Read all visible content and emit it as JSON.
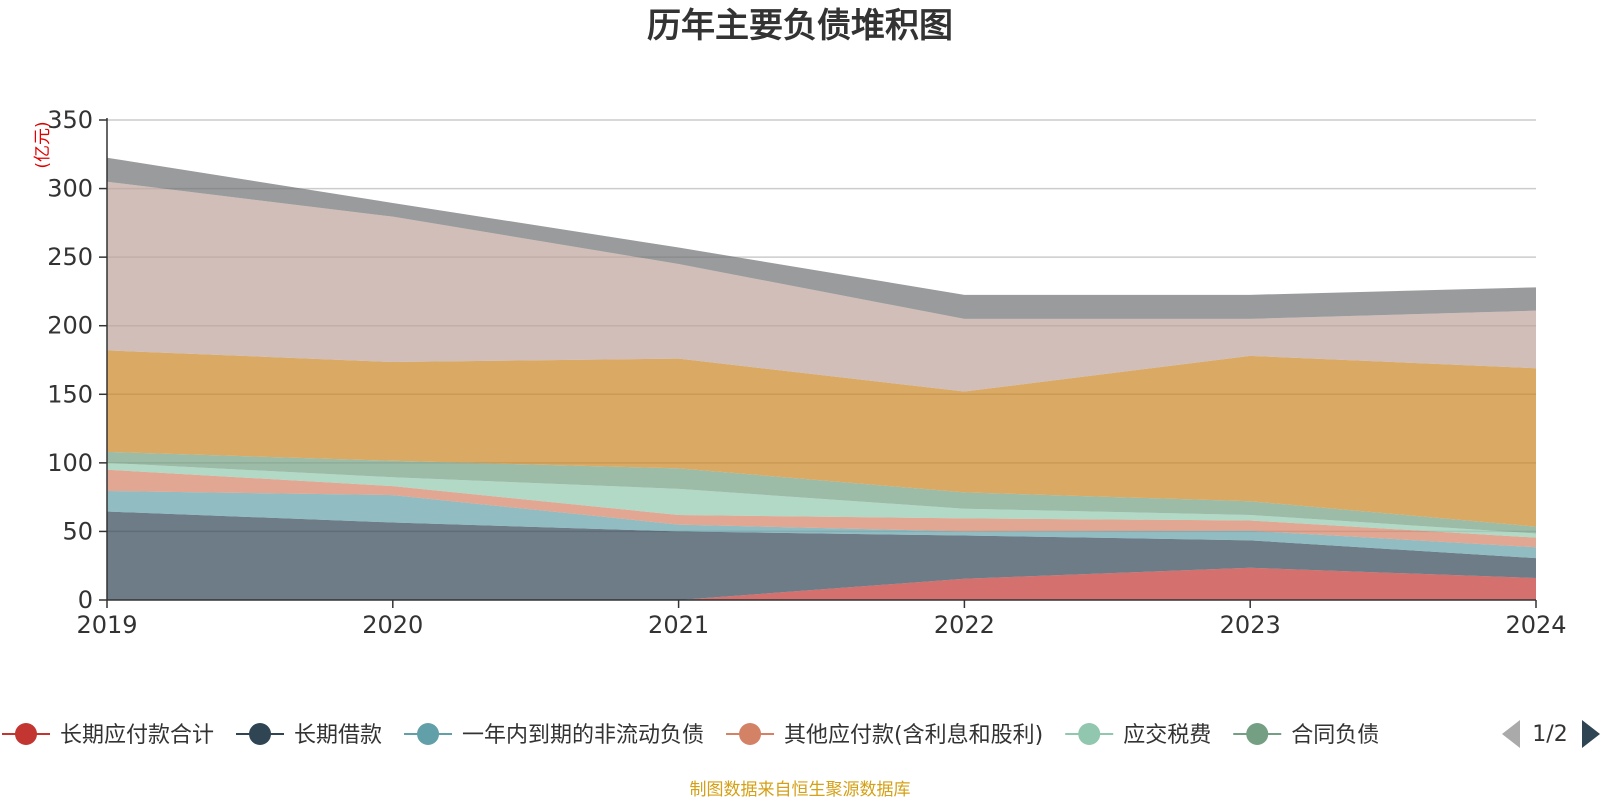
{
  "chart_data": {
    "type": "area",
    "stacked": true,
    "title": "历年主要负债堆积图",
    "unit_label": "(亿元)",
    "x": [
      "2019",
      "2020",
      "2021",
      "2022",
      "2023",
      "2024"
    ],
    "ylim": [
      0,
      350
    ],
    "yticks": [
      "0",
      "50",
      "100",
      "150",
      "200",
      "250",
      "300",
      "350"
    ],
    "grid": true,
    "legend_position": "bottom",
    "series": [
      {
        "name": "长期应付款合计",
        "color": "#c23531",
        "values": [
          0,
          0,
          0,
          15.5,
          23.5,
          16
        ]
      },
      {
        "name": "长期借款",
        "color": "#2f4554",
        "values": [
          64.5,
          56.5,
          50,
          31.5,
          20,
          14.5
        ]
      },
      {
        "name": "一年内到期的非流动负债",
        "color": "#61a0a8",
        "values": [
          15,
          20,
          5,
          3,
          7,
          8
        ]
      },
      {
        "name": "其他应付款(含利息和股利)",
        "color": "#d48265",
        "values": [
          15.5,
          6.5,
          7,
          9.5,
          7.5,
          7
        ]
      },
      {
        "name": "应交税费",
        "color": "#91c7ae",
        "values": [
          5,
          6.5,
          19,
          7,
          4,
          3
        ]
      },
      {
        "name": "合同负债",
        "color": "#749f83",
        "values": [
          8,
          12,
          15,
          12,
          10,
          5
        ]
      },
      {
        "name": "",
        "color": "#ca8622",
        "values": [
          74,
          72,
          80,
          73.5,
          106,
          115.5
        ]
      },
      {
        "name": "",
        "color": "#bda29a",
        "values": [
          123,
          106,
          69,
          53,
          27,
          42
        ]
      },
      {
        "name": "",
        "color": "#6e7074",
        "values": [
          17.5,
          10,
          12,
          17.5,
          17.5,
          17
        ]
      }
    ]
  },
  "legend": {
    "page": "1/2"
  },
  "footer": {
    "source": "制图数据来自恒生聚源数据库",
    "source_color": "#d4a017"
  }
}
